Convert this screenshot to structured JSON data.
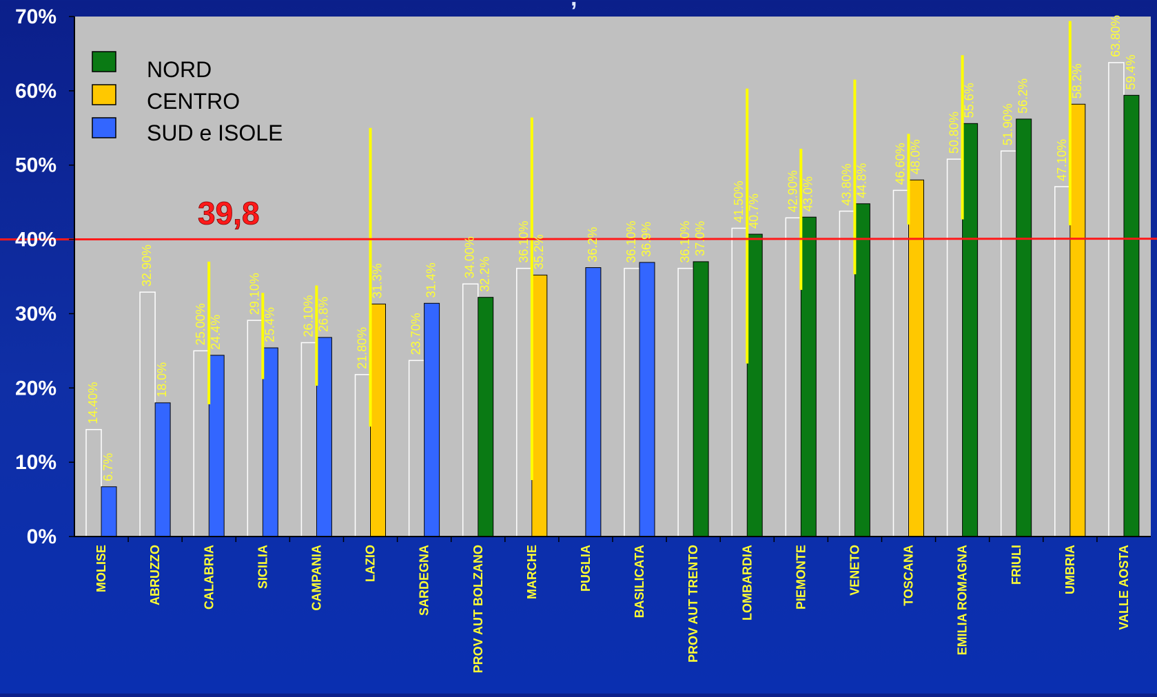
{
  "chart_data": {
    "type": "bar",
    "title": "",
    "xlabel": "",
    "ylabel": "",
    "ylim": [
      0,
      70
    ],
    "y_ticks": [
      "0%",
      "10%",
      "20%",
      "30%",
      "40%",
      "50%",
      "60%",
      "70%"
    ],
    "grid": false,
    "legend_position": "top-left",
    "categories": [
      "MOLISE",
      "ABRUZZO",
      "CALABRIA",
      "SICILIA",
      "CAMPANIA",
      "LAZIO",
      "SARDEGNA",
      "PROV AUT BOLZANO",
      "MARCHE",
      "PUGLIA",
      "BASILICATA",
      "PROV AUT TRENTO",
      "LOMBARDIA",
      "PIEMONTE",
      "VENETO",
      "TOSCANA",
      "EMILIA ROMAGNA",
      "FRIULI",
      "UMBRIA",
      "VALLE AOSTA"
    ],
    "series": [
      {
        "name": "",
        "color": "#c0c0c0",
        "values": [
          14.4,
          32.9,
          25.0,
          29.1,
          26.1,
          21.8,
          23.7,
          34.0,
          36.1,
          null,
          36.1,
          36.1,
          41.5,
          42.9,
          43.8,
          46.6,
          50.8,
          51.9,
          47.1,
          63.8
        ],
        "labels": [
          "14.40%",
          "32.90%",
          "25.00%",
          "29.10%",
          "26.10%",
          "21.80%",
          "23.70%",
          "34.00%",
          "36.10%",
          "",
          "36.10%",
          "36.10%",
          "41.50%",
          "42.90%",
          "43.80%",
          "46.60%",
          "50.80%",
          "51.90%",
          "47.10%",
          "63.80%"
        ]
      },
      {
        "name": "",
        "values": [
          6.7,
          18.0,
          24.4,
          25.4,
          26.8,
          31.3,
          31.4,
          32.2,
          35.2,
          36.2,
          36.9,
          37.0,
          40.7,
          43.0,
          44.8,
          48.0,
          55.6,
          56.2,
          58.2,
          59.4
        ],
        "labels": [
          "6.7%",
          "18.0%",
          "24.4%",
          "25.4%",
          "26.8%",
          "31.3%",
          "31.4%",
          "32.2%",
          "35.2%",
          "36.2%",
          "36.9%",
          "37.0%",
          "40.7%",
          "43.0%",
          "44.8%",
          "48.0%",
          "55.6%",
          "56.2%",
          "58.2%",
          "59.4%"
        ],
        "groups": [
          "SUD",
          "SUD",
          "SUD",
          "SUD",
          "SUD",
          "CENTRO",
          "SUD",
          "NORD",
          "CENTRO",
          "SUD",
          "SUD",
          "NORD",
          "NORD",
          "NORD",
          "NORD",
          "CENTRO",
          "NORD",
          "NORD",
          "CENTRO",
          "NORD"
        ],
        "error_low": [
          null,
          null,
          17.8,
          21.2,
          20.3,
          14.8,
          null,
          null,
          7.6,
          null,
          null,
          null,
          23.3,
          33.2,
          35.3,
          42.0,
          42.7,
          null,
          41.9,
          null
        ],
        "error_high": [
          null,
          null,
          37.0,
          32.8,
          33.8,
          55.0,
          null,
          null,
          56.4,
          null,
          null,
          null,
          60.3,
          52.2,
          61.5,
          54.2,
          64.8,
          null,
          69.4,
          null
        ]
      }
    ],
    "legend": [
      {
        "key": "NORD",
        "label": "NORD",
        "color": "#0a7a14"
      },
      {
        "key": "CENTRO",
        "label": "CENTRO",
        "color": "#ffc800"
      },
      {
        "key": "SUD",
        "label": "SUD e ISOLE",
        "color": "#3366ff"
      }
    ],
    "reference_line": {
      "value": 40,
      "label": "39,8",
      "color": "#ff1a1a"
    },
    "colors": {
      "plot_background": "#c0c0c0",
      "axis_text": "#ffffff",
      "value_labels": "#ffff33",
      "category_labels": "#ffff33",
      "error_bars": "#ffff00"
    }
  }
}
